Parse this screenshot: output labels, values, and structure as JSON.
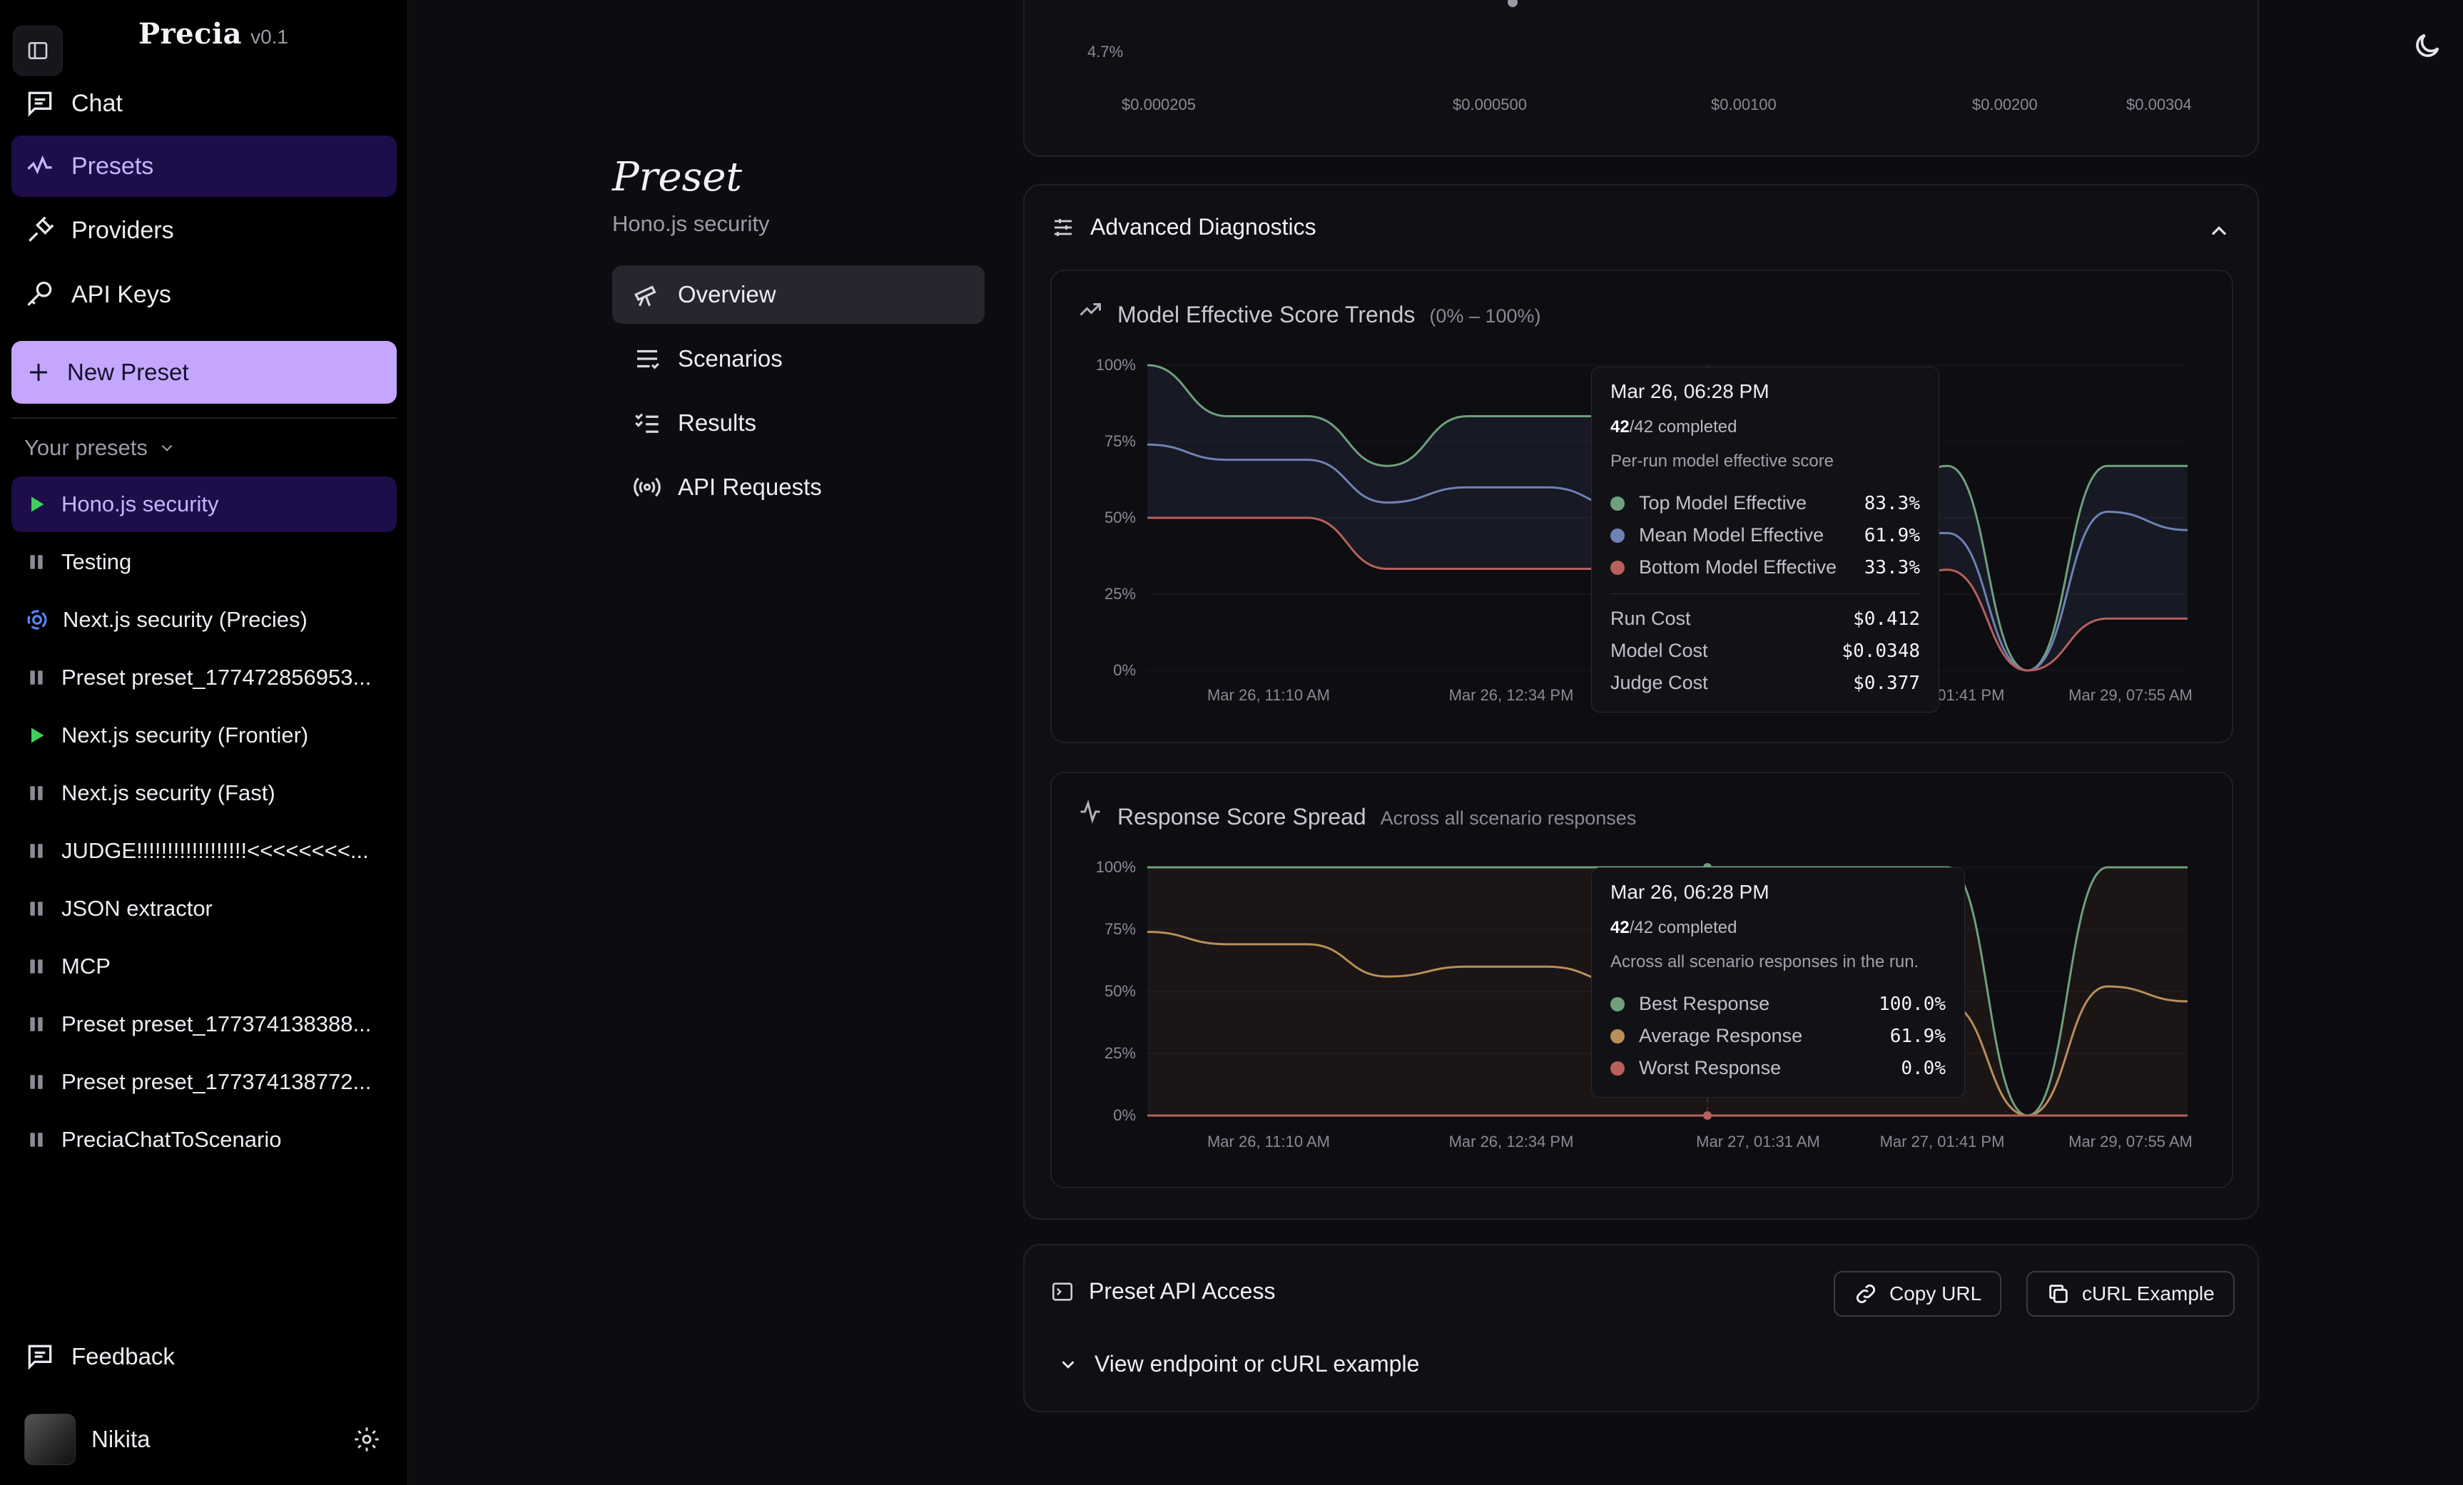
{
  "app": {
    "name": "Precia",
    "version": "v0.1"
  },
  "sidebar": {
    "nav": [
      {
        "label": "Chat",
        "icon": "chat-icon",
        "active": false
      },
      {
        "label": "Presets",
        "icon": "presets-icon",
        "active": true
      },
      {
        "label": "Providers",
        "icon": "plug-icon",
        "active": false
      },
      {
        "label": "API Keys",
        "icon": "key-icon",
        "active": false
      }
    ],
    "new_preset_label": "New Preset",
    "your_presets_label": "Your presets",
    "presets": [
      {
        "label": "Hono.js security",
        "status": "running",
        "active": true
      },
      {
        "label": "Testing",
        "status": "paused",
        "active": false
      },
      {
        "label": "Next.js security (Precies)",
        "status": "loading",
        "active": false
      },
      {
        "label": "Preset preset_177472856953...",
        "status": "paused",
        "active": false
      },
      {
        "label": "Next.js security (Frontier)",
        "status": "running",
        "active": false
      },
      {
        "label": "Next.js security (Fast)",
        "status": "paused",
        "active": false
      },
      {
        "label": "JUDGE!!!!!!!!!!!!!!!!!!<<<<<<<<...",
        "status": "paused",
        "active": false
      },
      {
        "label": "JSON extractor",
        "status": "paused",
        "active": false
      },
      {
        "label": "MCP",
        "status": "paused",
        "active": false
      },
      {
        "label": "Preset preset_177374138388...",
        "status": "paused",
        "active": false
      },
      {
        "label": "Preset preset_177374138772...",
        "status": "paused",
        "active": false
      },
      {
        "label": "PreciaChatToScenario",
        "status": "paused",
        "active": false
      }
    ],
    "feedback_label": "Feedback",
    "user_name": "Nikita"
  },
  "preset": {
    "title": "Preset",
    "subtitle": "Hono.js security",
    "tabs": [
      {
        "label": "Overview",
        "icon": "telescope-icon",
        "active": true
      },
      {
        "label": "Scenarios",
        "icon": "list-icon",
        "active": false
      },
      {
        "label": "Results",
        "icon": "checklist-icon",
        "active": false
      },
      {
        "label": "API Requests",
        "icon": "broadcast-icon",
        "active": false
      }
    ]
  },
  "top_chart": {
    "y_label": "4.7%",
    "x_ticks": [
      "$0.000205",
      "$0.000500",
      "$0.00100",
      "$0.00200",
      "$0.00304"
    ]
  },
  "advanced": {
    "title": "Advanced Diagnostics",
    "model_trend": {
      "title": "Model Effective Score Trends",
      "note": "(0% – 100%)",
      "tooltip": {
        "title": "Mar 26, 06:28 PM",
        "completed_num": "42",
        "completed_rest": "/42 completed",
        "desc": "Per-run model effective score",
        "rows": [
          {
            "name": "Top Model Effective",
            "value": "83.3%",
            "color": "#6f9f7d"
          },
          {
            "name": "Mean Model Effective",
            "value": "61.9%",
            "color": "#6f82b4"
          },
          {
            "name": "Bottom Model Effective",
            "value": "33.3%",
            "color": "#b7605c"
          }
        ],
        "costs": [
          {
            "name": "Run Cost",
            "value": "$0.412"
          },
          {
            "name": "Model Cost",
            "value": "$0.0348"
          },
          {
            "name": "Judge Cost",
            "value": "$0.377"
          }
        ]
      }
    },
    "response_spread": {
      "title": "Response Score Spread",
      "note": "Across all scenario responses",
      "tooltip": {
        "title": "Mar 26, 06:28 PM",
        "completed_num": "42",
        "completed_rest": "/42 completed",
        "desc": "Across all scenario responses in the run.",
        "rows": [
          {
            "name": "Best Response",
            "value": "100.0%",
            "color": "#6f9f7d"
          },
          {
            "name": "Average Response",
            "value": "61.9%",
            "color": "#b88e5a"
          },
          {
            "name": "Worst Response",
            "value": "0.0%",
            "color": "#b7605c"
          }
        ]
      }
    }
  },
  "api_access": {
    "title": "Preset API Access",
    "copy_url_label": "Copy URL",
    "curl_label": "cURL Example",
    "expander_label": "View endpoint or cURL example"
  },
  "chart_data": [
    {
      "type": "line",
      "title": "Model Effective Score Trends",
      "y_ticks": [
        "100%",
        "75%",
        "50%",
        "25%",
        "0%"
      ],
      "x_ticks": [
        "Mar 26, 11:10 AM",
        "Mar 26, 12:34 PM",
        "Mar 27, 01:31 AM",
        "Mar 27, 01:41 PM",
        "Mar 29, 07:55 AM"
      ],
      "ylim": [
        0,
        100
      ],
      "series": [
        {
          "name": "Top Model Effective",
          "color": "#6f9f7d",
          "values": [
            100,
            83.3,
            83.3,
            67,
            83.3,
            83.3,
            83.3,
            83.3,
            60,
            50,
            67,
            0,
            67,
            67
          ]
        },
        {
          "name": "Mean Model Effective",
          "color": "#6f82b4",
          "values": [
            74,
            69,
            69,
            55,
            60,
            60,
            53,
            61.9,
            55,
            45,
            45,
            0,
            52,
            46
          ]
        },
        {
          "name": "Bottom Model Effective",
          "color": "#b7605c",
          "values": [
            50,
            50,
            50,
            33.3,
            33.3,
            33.3,
            33.3,
            33.3,
            22,
            19,
            33,
            0,
            17,
            17
          ]
        }
      ]
    },
    {
      "type": "line",
      "title": "Response Score Spread",
      "y_ticks": [
        "100%",
        "75%",
        "50%",
        "25%",
        "0%"
      ],
      "x_ticks": [
        "Mar 26, 11:10 AM",
        "Mar 26, 12:34 PM",
        "Mar 27, 01:31 AM",
        "Mar 27, 01:41 PM",
        "Mar 29, 07:55 AM"
      ],
      "ylim": [
        0,
        100
      ],
      "series": [
        {
          "name": "Best Response",
          "color": "#6f9f7d",
          "values": [
            100,
            100,
            100,
            100,
            100,
            100,
            100,
            100,
            100,
            100,
            100,
            0,
            100,
            100
          ]
        },
        {
          "name": "Average Response",
          "color": "#b88e5a",
          "values": [
            74,
            69,
            69,
            56,
            60,
            60,
            53,
            61.9,
            55,
            45,
            45,
            0,
            52,
            46
          ]
        },
        {
          "name": "Worst Response",
          "color": "#b7605c",
          "values": [
            0,
            0,
            0,
            0,
            0,
            0,
            0,
            0,
            0,
            0,
            0,
            0,
            0,
            0
          ]
        }
      ]
    }
  ]
}
